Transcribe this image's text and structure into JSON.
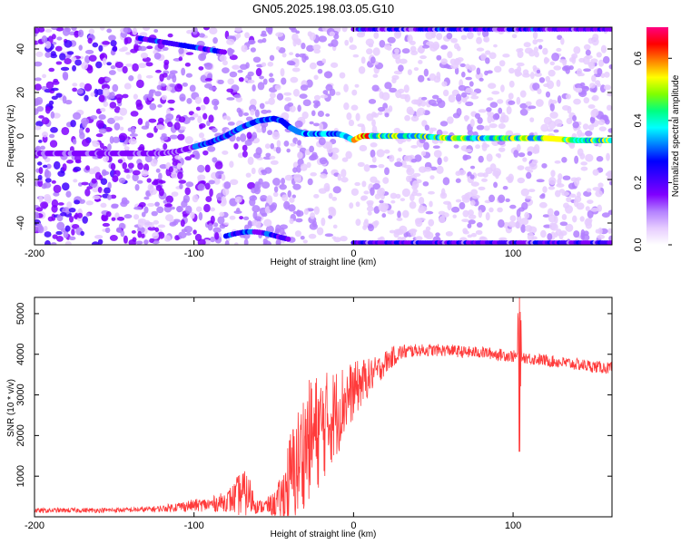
{
  "title": "GN05.2025.198.03.05.G10",
  "chart_data": [
    {
      "type": "heatmap",
      "xlabel": "Height of straight line (km)",
      "ylabel": "Frequency (Hz)",
      "xlim": [
        -200,
        162
      ],
      "ylim": [
        -50,
        50
      ],
      "x_ticks": [
        -200,
        -100,
        0,
        100
      ],
      "y_ticks": [
        -40,
        -20,
        0,
        20,
        40
      ],
      "grid": false,
      "colorbar": {
        "label": "Normalized spectral amplitude",
        "range": [
          0.0,
          0.7
        ],
        "ticks": [
          0.0,
          0.2,
          0.4,
          0.6
        ],
        "colormap": [
          "#ffffff",
          "#e6ccff",
          "#b380ff",
          "#8000ff",
          "#4000ff",
          "#0000ff",
          "#0080ff",
          "#00ffff",
          "#00ff80",
          "#80ff00",
          "#ffff00",
          "#ff8000",
          "#ff0000",
          "#ff0080"
        ]
      },
      "ridge": {
        "x": [
          -200,
          -135,
          -120,
          -110,
          -100,
          -90,
          -80,
          -70,
          -60,
          -50,
          -45,
          -40,
          -35,
          -30,
          -20,
          -10,
          -5,
          0,
          5,
          10,
          20,
          40,
          60,
          80,
          100,
          120,
          140,
          162
        ],
        "y": [
          -8,
          -8,
          -8,
          -7,
          -5,
          -3,
          0,
          4,
          7,
          8,
          7,
          4,
          2,
          1,
          1,
          1,
          0,
          -2,
          0,
          0,
          0,
          0,
          -1,
          -1,
          -1,
          -1,
          -2,
          -2
        ],
        "peak_amplitude": 0.6
      }
    },
    {
      "type": "line",
      "xlabel": "Height of straight line (km)",
      "ylabel": "SNR (10 * v/v)",
      "xlim": [
        -200,
        162
      ],
      "ylim": [
        0,
        5400
      ],
      "x_ticks": [
        -200,
        -100,
        0,
        100
      ],
      "y_ticks": [
        1000,
        2000,
        3000,
        4000,
        5000
      ],
      "grid": false,
      "series": [
        {
          "color": "#ff3b3b",
          "x": [
            -200,
            -180,
            -160,
            -140,
            -130,
            -120,
            -110,
            -100,
            -90,
            -80,
            -75,
            -70,
            -65,
            -60,
            -55,
            -50,
            -45,
            -40,
            -35,
            -30,
            -25,
            -20,
            -15,
            -10,
            -5,
            0,
            5,
            10,
            15,
            20,
            25,
            30,
            40,
            50,
            60,
            70,
            80,
            90,
            100,
            105,
            110,
            120,
            130,
            140,
            150,
            162
          ],
          "y": [
            150,
            160,
            160,
            170,
            180,
            200,
            250,
            280,
            300,
            380,
            450,
            600,
            500,
            250,
            260,
            300,
            450,
            900,
            1300,
            1800,
            2000,
            2200,
            2400,
            2600,
            2900,
            3100,
            3300,
            3450,
            3600,
            3800,
            3950,
            4050,
            4100,
            4100,
            4100,
            4050,
            4050,
            4000,
            3950,
            3950,
            3900,
            3850,
            3800,
            3750,
            3700,
            3650
          ],
          "noise_amplitude": [
            60,
            60,
            60,
            60,
            70,
            80,
            120,
            150,
            180,
            250,
            400,
            600,
            500,
            150,
            200,
            300,
            600,
            1200,
            1400,
            1500,
            1500,
            1400,
            1200,
            1100,
            900,
            700,
            600,
            450,
            350,
            300,
            250,
            200,
            150,
            150,
            150,
            150,
            150,
            150,
            150,
            150,
            150,
            150,
            150,
            150,
            150,
            150
          ],
          "spike": {
            "x": 104,
            "max": 5400,
            "min": 1600
          }
        }
      ]
    }
  ]
}
